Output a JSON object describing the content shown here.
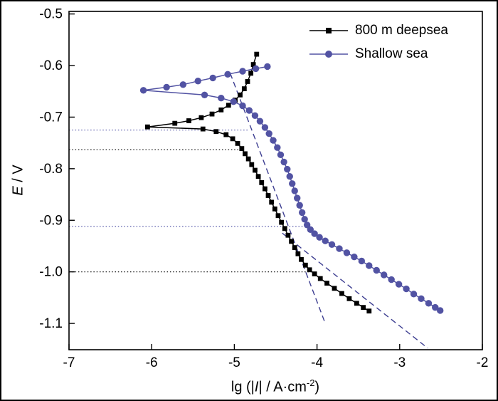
{
  "figure": {
    "background": "#ffffff",
    "border_color": "#000000"
  },
  "chart_data": {
    "type": "line",
    "title": "",
    "x_axis": {
      "min": -7,
      "max": -2,
      "label_parts": {
        "pre": "lg (|",
        "italic": "I",
        "post": "| / A·cm",
        "sup": "-2",
        "end": ")"
      },
      "ticks": [
        {
          "v": -7,
          "label": "-7"
        },
        {
          "v": -6,
          "label": "-6"
        },
        {
          "v": -5,
          "label": "-5"
        },
        {
          "v": -4,
          "label": "-4"
        },
        {
          "v": -3,
          "label": "-3"
        },
        {
          "v": -2,
          "label": "-2"
        }
      ]
    },
    "y_axis": {
      "top": -0.495,
      "bottom": -1.151,
      "label_parts": {
        "italic": "E",
        "rest": " / V"
      },
      "ticks": [
        {
          "v": -0.5,
          "label": "-0.5"
        },
        {
          "v": -0.6,
          "label": "-0.6"
        },
        {
          "v": -0.7,
          "label": "-0.7"
        },
        {
          "v": -0.8,
          "label": "-0.8"
        },
        {
          "v": -0.9,
          "label": "-0.9"
        },
        {
          "v": -1.0,
          "label": "-1.0"
        },
        {
          "v": -1.1,
          "label": "-1.1"
        }
      ]
    },
    "series": [
      {
        "name": "800 m deepsea",
        "color": "#000000",
        "marker": "square",
        "points": [
          [
            -4.73,
            -0.578
          ],
          [
            -4.77,
            -0.598
          ],
          [
            -4.8,
            -0.615
          ],
          [
            -4.84,
            -0.631
          ],
          [
            -4.88,
            -0.645
          ],
          [
            -4.93,
            -0.657
          ],
          [
            -4.99,
            -0.667
          ],
          [
            -5.07,
            -0.677
          ],
          [
            -5.16,
            -0.686
          ],
          [
            -5.27,
            -0.694
          ],
          [
            -5.4,
            -0.701
          ],
          [
            -5.55,
            -0.707
          ],
          [
            -5.72,
            -0.712
          ],
          [
            -6.05,
            -0.719
          ],
          [
            -5.38,
            -0.723
          ],
          [
            -5.22,
            -0.728
          ],
          [
            -5.1,
            -0.734
          ],
          [
            -5.02,
            -0.742
          ],
          [
            -4.96,
            -0.751
          ],
          [
            -4.91,
            -0.761
          ],
          [
            -4.87,
            -0.771
          ],
          [
            -4.83,
            -0.781
          ],
          [
            -4.79,
            -0.792
          ],
          [
            -4.75,
            -0.803
          ],
          [
            -4.71,
            -0.815
          ],
          [
            -4.67,
            -0.827
          ],
          [
            -4.63,
            -0.839
          ],
          [
            -4.59,
            -0.852
          ],
          [
            -4.55,
            -0.865
          ],
          [
            -4.51,
            -0.878
          ],
          [
            -4.47,
            -0.891
          ],
          [
            -4.43,
            -0.904
          ],
          [
            -4.39,
            -0.916
          ],
          [
            -4.35,
            -0.929
          ],
          [
            -4.31,
            -0.941
          ],
          [
            -4.27,
            -0.953
          ],
          [
            -4.23,
            -0.965
          ],
          [
            -4.19,
            -0.976
          ],
          [
            -4.14,
            -0.987
          ],
          [
            -4.09,
            -0.996
          ],
          [
            -4.03,
            -1.004
          ],
          [
            -3.96,
            -1.013
          ],
          [
            -3.88,
            -1.022
          ],
          [
            -3.79,
            -1.032
          ],
          [
            -3.7,
            -1.042
          ],
          [
            -3.61,
            -1.052
          ],
          [
            -3.52,
            -1.061
          ],
          [
            -3.44,
            -1.069
          ],
          [
            -3.37,
            -1.076
          ]
        ]
      },
      {
        "name": "Shallow sea",
        "color": "#5253a3",
        "marker": "circle",
        "points": [
          [
            -4.6,
            -0.602
          ],
          [
            -4.74,
            -0.606
          ],
          [
            -4.9,
            -0.611
          ],
          [
            -5.08,
            -0.617
          ],
          [
            -5.26,
            -0.624
          ],
          [
            -5.44,
            -0.63
          ],
          [
            -5.62,
            -0.637
          ],
          [
            -5.82,
            -0.642
          ],
          [
            -6.1,
            -0.648
          ],
          [
            -5.36,
            -0.657
          ],
          [
            -5.16,
            -0.663
          ],
          [
            -5.01,
            -0.67
          ],
          [
            -4.9,
            -0.678
          ],
          [
            -4.82,
            -0.687
          ],
          [
            -4.75,
            -0.697
          ],
          [
            -4.69,
            -0.708
          ],
          [
            -4.63,
            -0.72
          ],
          [
            -4.58,
            -0.732
          ],
          [
            -4.53,
            -0.745
          ],
          [
            -4.48,
            -0.759
          ],
          [
            -4.44,
            -0.773
          ],
          [
            -4.4,
            -0.787
          ],
          [
            -4.36,
            -0.801
          ],
          [
            -4.33,
            -0.815
          ],
          [
            -4.3,
            -0.829
          ],
          [
            -4.27,
            -0.843
          ],
          [
            -4.24,
            -0.857
          ],
          [
            -4.21,
            -0.871
          ],
          [
            -4.18,
            -0.885
          ],
          [
            -4.15,
            -0.898
          ],
          [
            -4.12,
            -0.909
          ],
          [
            -4.08,
            -0.918
          ],
          [
            -4.03,
            -0.926
          ],
          [
            -3.97,
            -0.933
          ],
          [
            -3.9,
            -0.94
          ],
          [
            -3.82,
            -0.947
          ],
          [
            -3.73,
            -0.955
          ],
          [
            -3.64,
            -0.963
          ],
          [
            -3.55,
            -0.971
          ],
          [
            -3.46,
            -0.979
          ],
          [
            -3.37,
            -0.988
          ],
          [
            -3.28,
            -0.997
          ],
          [
            -3.19,
            -1.006
          ],
          [
            -3.1,
            -1.015
          ],
          [
            -3.01,
            -1.024
          ],
          [
            -2.92,
            -1.033
          ],
          [
            -2.83,
            -1.043
          ],
          [
            -2.74,
            -1.052
          ],
          [
            -2.65,
            -1.061
          ],
          [
            -2.57,
            -1.069
          ],
          [
            -2.51,
            -1.075
          ]
        ]
      }
    ],
    "tafel_extrapolation_lines": [
      {
        "color": "#3d3e91",
        "x1": -5.05,
        "y1": -0.615,
        "x2": -3.9,
        "y2": -1.1
      },
      {
        "color": "#3d3e91",
        "x1": -4.42,
        "y1": -0.925,
        "x2": -2.66,
        "y2": -1.148
      }
    ],
    "reference_lines": [
      {
        "color": "#4547a0",
        "y": -0.725,
        "x_end": -4.82
      },
      {
        "color": "#000000",
        "y": -0.763,
        "x_end": -4.9
      },
      {
        "color": "#4547a0",
        "y": -0.912,
        "x_end": -4.16
      },
      {
        "color": "#000000",
        "y": -1.0,
        "x_end": -4.05
      }
    ],
    "legend": {
      "position": "top-right"
    }
  }
}
